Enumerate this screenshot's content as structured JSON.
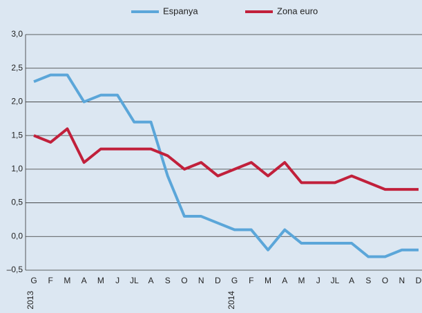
{
  "chart_data": {
    "type": "line",
    "categories": [
      "G",
      "F",
      "M",
      "A",
      "M",
      "J",
      "JL",
      "A",
      "S",
      "O",
      "N",
      "D",
      "G",
      "F",
      "M",
      "A",
      "M",
      "J",
      "JL",
      "A",
      "S",
      "O",
      "N",
      "D"
    ],
    "years": [
      "2013",
      null,
      null,
      null,
      null,
      null,
      null,
      null,
      null,
      null,
      null,
      null,
      "2014",
      null,
      null,
      null,
      null,
      null,
      null,
      null,
      null,
      null,
      null,
      null
    ],
    "series": [
      {
        "name": "Espanya",
        "color": "#5ba6d9",
        "values": [
          2.3,
          2.4,
          2.4,
          2.0,
          2.1,
          2.1,
          1.7,
          1.7,
          0.9,
          0.3,
          0.3,
          0.2,
          0.1,
          0.1,
          -0.2,
          0.1,
          -0.1,
          -0.1,
          -0.1,
          -0.1,
          -0.3,
          -0.3,
          -0.2,
          -0.2
        ]
      },
      {
        "name": "Zona euro",
        "color": "#c1203b",
        "values": [
          1.5,
          1.4,
          1.6,
          1.1,
          1.3,
          1.3,
          1.3,
          1.3,
          1.2,
          1.0,
          1.1,
          0.9,
          1.0,
          1.1,
          0.9,
          1.1,
          0.8,
          0.8,
          0.8,
          0.9,
          0.8,
          0.7,
          0.7,
          0.7
        ]
      }
    ],
    "ylim": [
      -0.5,
      3.0
    ],
    "yticks": [
      {
        "value": -0.5,
        "label": "–0,5"
      },
      {
        "value": 0,
        "label": "0,0"
      },
      {
        "value": 0.5,
        "label": "0,5"
      },
      {
        "value": 1,
        "label": "1,0"
      },
      {
        "value": 1.5,
        "label": "1,5"
      },
      {
        "value": 2,
        "label": "2,0"
      },
      {
        "value": 2.5,
        "label": "2,5"
      },
      {
        "value": 3,
        "label": "3,0"
      }
    ],
    "grid": true,
    "legend": "top"
  }
}
